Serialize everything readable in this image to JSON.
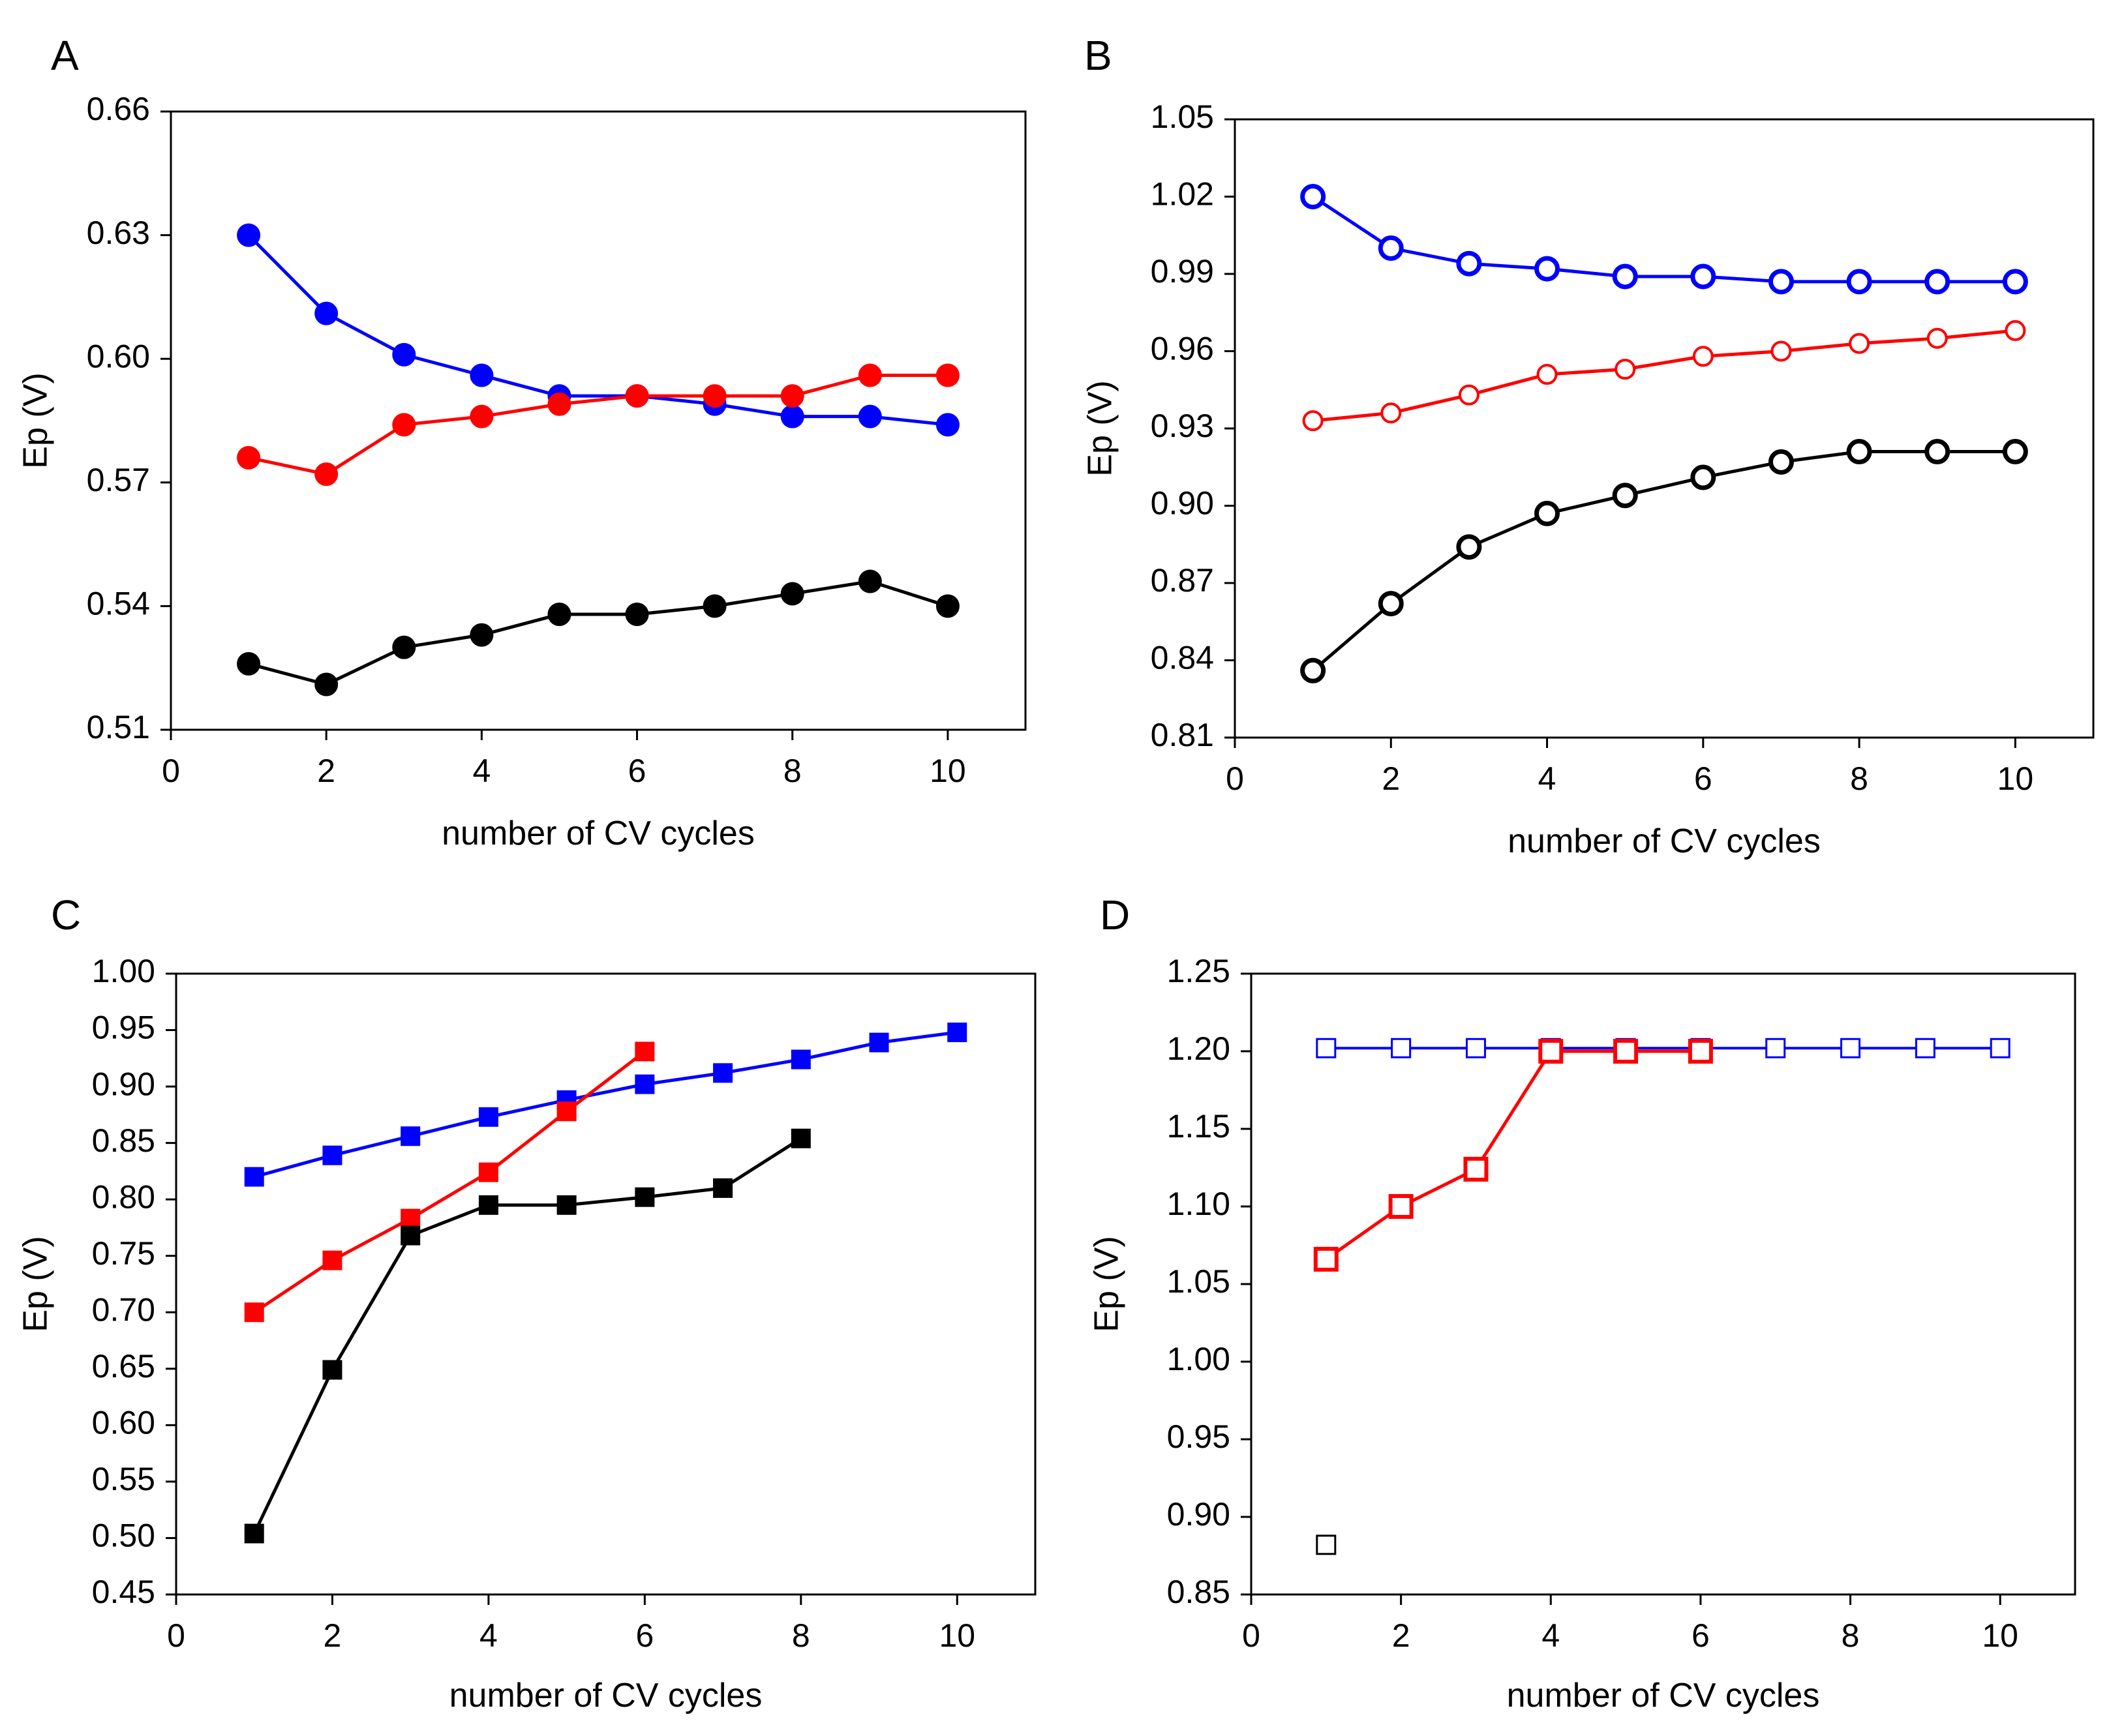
{
  "chart_data": [
    {
      "panel": "A",
      "type": "line",
      "xlabel": "number of CV cycles",
      "ylabel": "Ep (V)",
      "xlim": [
        0,
        11
      ],
      "ylim": [
        0.51,
        0.66
      ],
      "xticks": [
        "0",
        "2",
        "4",
        "6",
        "8",
        "10"
      ],
      "yticks": [
        "0.66",
        "0.63",
        "0.60",
        "0.57",
        "0.54",
        "0.51"
      ],
      "marker": "circle-filled",
      "series": [
        {
          "name": "blue",
          "color": "#0000ff",
          "x": [
            1,
            2,
            3,
            4,
            5,
            6,
            7,
            8,
            9,
            10
          ],
          "values": [
            0.63,
            0.611,
            0.601,
            0.596,
            0.591,
            0.591,
            0.589,
            0.586,
            0.586,
            0.584
          ]
        },
        {
          "name": "red",
          "color": "#ff0000",
          "x": [
            1,
            2,
            3,
            4,
            5,
            6,
            7,
            8,
            9,
            10
          ],
          "values": [
            0.576,
            0.572,
            0.584,
            0.586,
            0.589,
            0.591,
            0.591,
            0.591,
            0.596,
            0.596
          ]
        },
        {
          "name": "black",
          "color": "#000000",
          "x": [
            1,
            2,
            3,
            4,
            5,
            6,
            7,
            8,
            9,
            10
          ],
          "values": [
            0.526,
            0.521,
            0.53,
            0.533,
            0.538,
            0.538,
            0.54,
            0.543,
            0.546,
            0.54
          ]
        }
      ]
    },
    {
      "panel": "B",
      "type": "line",
      "xlabel": "number of CV cycles",
      "ylabel": "Ep (V)",
      "xlim": [
        0,
        11
      ],
      "ylim": [
        0.81,
        1.05
      ],
      "xticks": [
        "0",
        "2",
        "4",
        "6",
        "8",
        "10"
      ],
      "yticks": [
        "1.05",
        "1.02",
        "0.99",
        "0.96",
        "0.93",
        "0.90",
        "0.87",
        "0.84",
        "0.81"
      ],
      "marker": "circle-open",
      "series": [
        {
          "name": "blue",
          "color": "#0000ff",
          "x": [
            1,
            2,
            3,
            4,
            5,
            6,
            7,
            8,
            9,
            10
          ],
          "values": [
            1.02,
            1.0,
            0.994,
            0.992,
            0.989,
            0.989,
            0.987,
            0.987,
            0.987,
            0.987
          ]
        },
        {
          "name": "red",
          "color": "#ff0000",
          "x": [
            1,
            2,
            3,
            4,
            5,
            6,
            7,
            8,
            9,
            10
          ],
          "values": [
            0.933,
            0.936,
            0.943,
            0.951,
            0.953,
            0.958,
            0.96,
            0.963,
            0.965,
            0.968
          ]
        },
        {
          "name": "black",
          "color": "#000000",
          "x": [
            1,
            2,
            3,
            4,
            5,
            6,
            7,
            8,
            9,
            10
          ],
          "values": [
            0.836,
            0.862,
            0.884,
            0.897,
            0.904,
            0.911,
            0.917,
            0.921,
            0.921,
            0.921
          ]
        }
      ]
    },
    {
      "panel": "C",
      "type": "line",
      "xlabel": "number of CV cycles",
      "ylabel": "Ep (V)",
      "xlim": [
        0,
        11
      ],
      "ylim": [
        0.45,
        1.0
      ],
      "xticks": [
        "0",
        "2",
        "4",
        "6",
        "8",
        "10"
      ],
      "yticks": [
        "1.00",
        "0.95",
        "0.90",
        "0.85",
        "0.80",
        "0.75",
        "0.70",
        "0.65",
        "0.60",
        "0.55",
        "0.50",
        "0.45"
      ],
      "marker": "square-filled",
      "series": [
        {
          "name": "blue",
          "color": "#0000ff",
          "x": [
            1,
            2,
            3,
            4,
            5,
            6,
            7,
            8,
            9,
            10
          ],
          "values": [
            0.82,
            0.839,
            0.856,
            0.873,
            0.888,
            0.902,
            0.912,
            0.924,
            0.939,
            0.948
          ]
        },
        {
          "name": "red",
          "color": "#ff0000",
          "x": [
            1,
            2,
            3,
            4,
            5,
            6
          ],
          "values": [
            0.7,
            0.746,
            0.783,
            0.824,
            0.878,
            0.931
          ]
        },
        {
          "name": "black",
          "color": "#000000",
          "x": [
            1,
            2,
            3,
            4,
            5,
            6,
            7,
            8
          ],
          "values": [
            0.504,
            0.649,
            0.768,
            0.795,
            0.795,
            0.802,
            0.81,
            0.854
          ]
        }
      ]
    },
    {
      "panel": "D",
      "type": "line",
      "xlabel": "number of CV cycles",
      "ylabel": "Ep (V)",
      "xlim": [
        0,
        11
      ],
      "ylim": [
        0.85,
        1.25
      ],
      "xticks": [
        "0",
        "2",
        "4",
        "6",
        "8",
        "10"
      ],
      "yticks": [
        "1.25",
        "1.20",
        "1.15",
        "1.10",
        "1.05",
        "1.00",
        "0.95",
        "0.90",
        "0.85"
      ],
      "marker": "square-open",
      "series": [
        {
          "name": "blue",
          "color": "#0000ff",
          "x": [
            1,
            2,
            3,
            4,
            5,
            6,
            7,
            8,
            9,
            10
          ],
          "values": [
            1.202,
            1.202,
            1.202,
            1.202,
            1.202,
            1.202,
            1.202,
            1.202,
            1.202,
            1.202
          ]
        },
        {
          "name": "red",
          "color": "#ff0000",
          "x": [
            1,
            2,
            3,
            4,
            5,
            6
          ],
          "values": [
            1.066,
            1.1,
            1.124,
            1.2,
            1.2,
            1.2
          ]
        },
        {
          "name": "black",
          "color": "#000000",
          "x": [
            1
          ],
          "values": [
            0.882
          ]
        }
      ]
    }
  ]
}
